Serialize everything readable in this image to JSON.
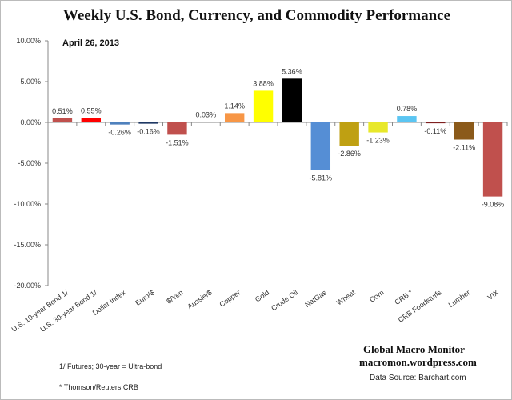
{
  "chart_data": {
    "type": "bar",
    "title": "Weekly U.S. Bond, Currency, and Commodity Performance",
    "subtitle": "April 26, 2013",
    "categories": [
      "U.S. 10-year Bond 1/",
      "U.S. 30-year Bond 1/",
      "Dollar Index",
      "Euro/$",
      "$/Yen",
      "Aussie/$",
      "Copper",
      "Gold",
      "Crude Oil",
      "NatGas",
      "Wheat",
      "Corn",
      "CRB *",
      "CRB Foodstuffs",
      "Lumber",
      "VIX"
    ],
    "values": [
      0.51,
      0.55,
      -0.26,
      -0.16,
      -1.51,
      0.03,
      1.14,
      3.88,
      5.36,
      -5.81,
      -2.86,
      -1.23,
      0.78,
      -0.11,
      -2.11,
      -9.08
    ],
    "data_labels": [
      "0.51%",
      "0.55%",
      "-0.26%",
      "-0.16%",
      "-1.51%",
      "0.03%",
      "1.14%",
      "3.88%",
      "5.36%",
      "-5.81%",
      "-2.86%",
      "-1.23%",
      "0.78%",
      "-0.11%",
      "-2.11%",
      "-9.08%"
    ],
    "colors": [
      "#c0504d",
      "#ff0000",
      "#4f81bd",
      "#1f3864",
      "#c0504d",
      "#a6a6a6",
      "#f79646",
      "#ffff00",
      "#000000",
      "#558ed5",
      "#bfa012",
      "#e8e82a",
      "#5bc5f2",
      "#7f1f1f",
      "#8b5a1a",
      "#c0504d"
    ],
    "ylim": [
      -20,
      10
    ],
    "yticks": [
      10,
      5,
      0,
      -5,
      -10,
      -15,
      -20
    ],
    "ytick_labels": [
      "10.00%",
      "5.00%",
      "0.00%",
      "-5.00%",
      "-10.00%",
      "-15.00%",
      "-20.00%"
    ],
    "xlabel": "",
    "ylabel": "",
    "grid": false,
    "legend": "none"
  },
  "footer": {
    "note1": "1/ Futures; 30-year = Ultra-bond",
    "note2": "* Thomson/Reuters CRB",
    "brand": "Global Macro Monitor",
    "site": "macromon.wordpress.com",
    "source": "Data Source:  Barchart.com"
  }
}
